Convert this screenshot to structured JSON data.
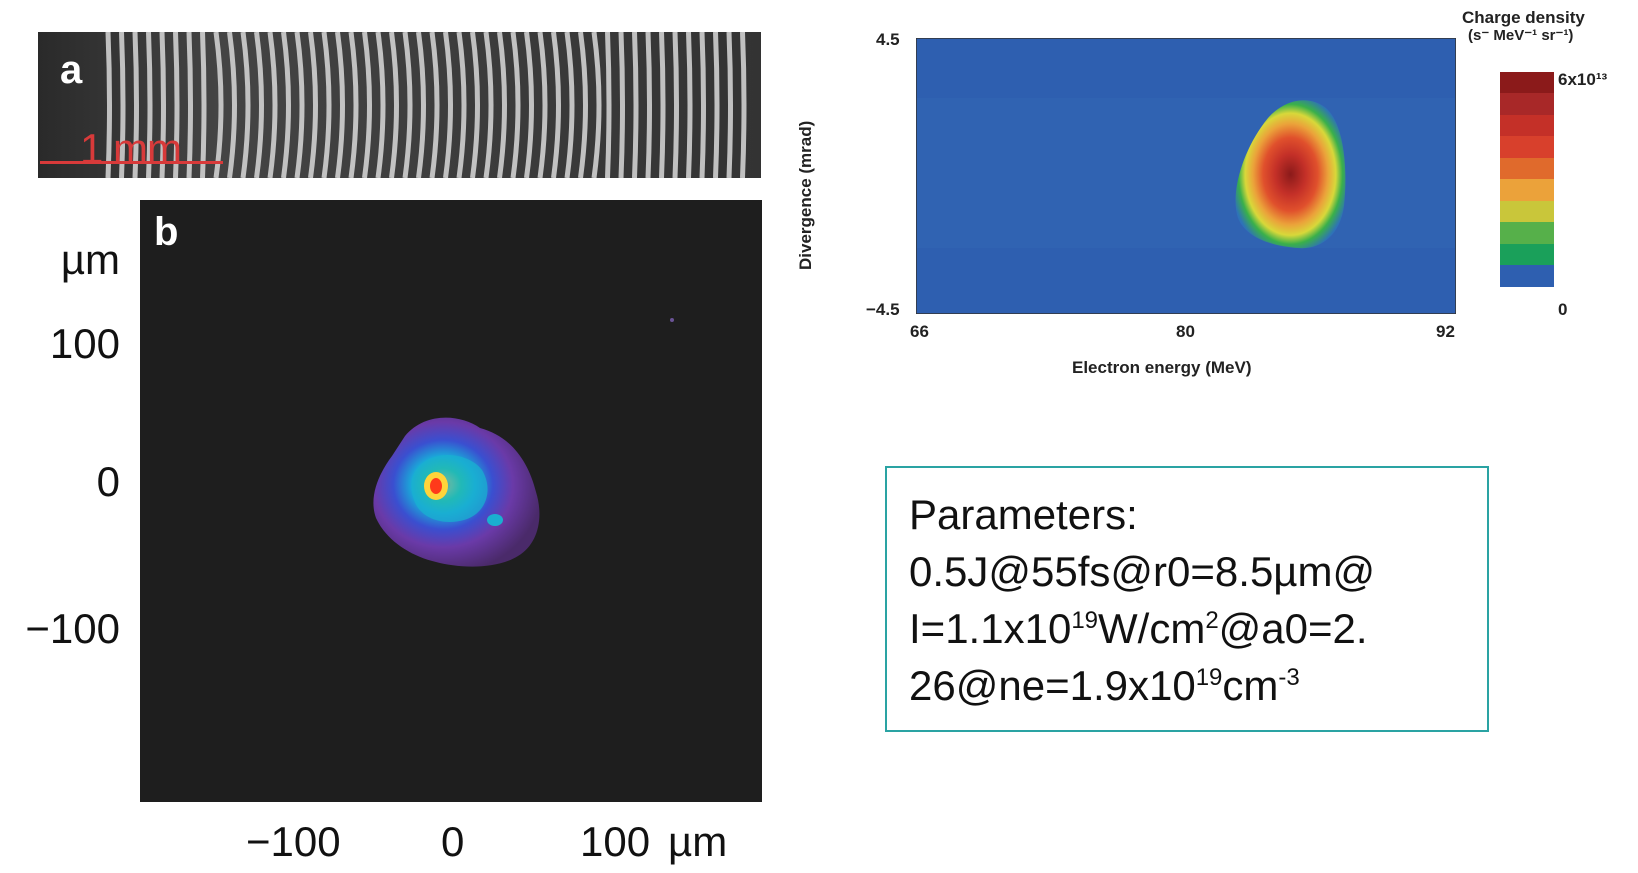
{
  "panel_a": {
    "letter": "a",
    "scale_label": "1 mm"
  },
  "panel_b": {
    "letter": "b",
    "y_unit": "µm",
    "y_ticks": [
      "100",
      "0",
      "−100"
    ],
    "x_ticks": [
      "−100",
      "0",
      "100"
    ],
    "x_unit": "µm"
  },
  "spectrum": {
    "ylabel": "Divergence (mrad)",
    "xlabel": "Electron energy (MeV)",
    "y_top": "4.5",
    "y_bottom": "−4.5",
    "x_ticks": [
      "66",
      "80",
      "92"
    ],
    "colorbar_title_line1": "Charge density",
    "colorbar_title_line2": "(s⁻ MeV⁻¹ sr⁻¹)",
    "colorbar_max": "6x10¹³",
    "colorbar_min": "0",
    "colorbar_colors": [
      "#8b1a1a",
      "#a82828",
      "#c43028",
      "#d8402c",
      "#e06a2c",
      "#eba23a",
      "#c9c63a",
      "#56b04a",
      "#1aa05a",
      "#2e5fb0",
      "#ffffff"
    ]
  },
  "parameters": {
    "line1": "Parameters:",
    "line2": "0.5J@55fs@r0=8.5µm@",
    "line3_a": "I=1.1x10",
    "line3_sup": "19",
    "line3_b": "W/cm",
    "line3_sup2": "2",
    "line3_c": "@a0=2.",
    "line4_a": "26@ne=1.9x10",
    "line4_sup": "19",
    "line4_b": "cm",
    "line4_sup2": "-3"
  }
}
